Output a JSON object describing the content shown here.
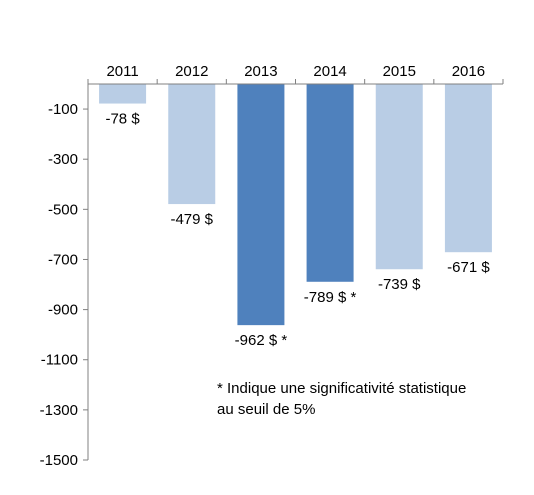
{
  "chart_data": {
    "type": "bar",
    "categories": [
      "2011",
      "2012",
      "2013",
      "2014",
      "2015",
      "2016"
    ],
    "values": [
      -78,
      -479,
      -962,
      -789,
      -739,
      -671
    ],
    "data_labels": [
      "-78 $",
      "-479 $",
      "-962 $ *",
      "-789 $ *",
      "-739 $",
      "-671 $"
    ],
    "significant": [
      false,
      false,
      true,
      true,
      false,
      false
    ],
    "ylim": [
      -1500,
      0
    ],
    "yticks": [
      -100,
      -300,
      -500,
      -700,
      -900,
      -1100,
      -1300,
      -1500
    ],
    "ytick_labels": [
      "-100",
      "-300",
      "-500",
      "-700",
      "-900",
      "-1100",
      "-1300",
      "-1500"
    ],
    "x_axis_position": "top",
    "grid": false,
    "title": "",
    "xlabel": "",
    "ylabel": "",
    "colors": {
      "normal": "#b9cde5",
      "significant": "#4f81bd",
      "axis": "#808080"
    }
  },
  "note": {
    "line1": "* Indique une significativité statistique",
    "line2": "au seuil de 5%"
  }
}
